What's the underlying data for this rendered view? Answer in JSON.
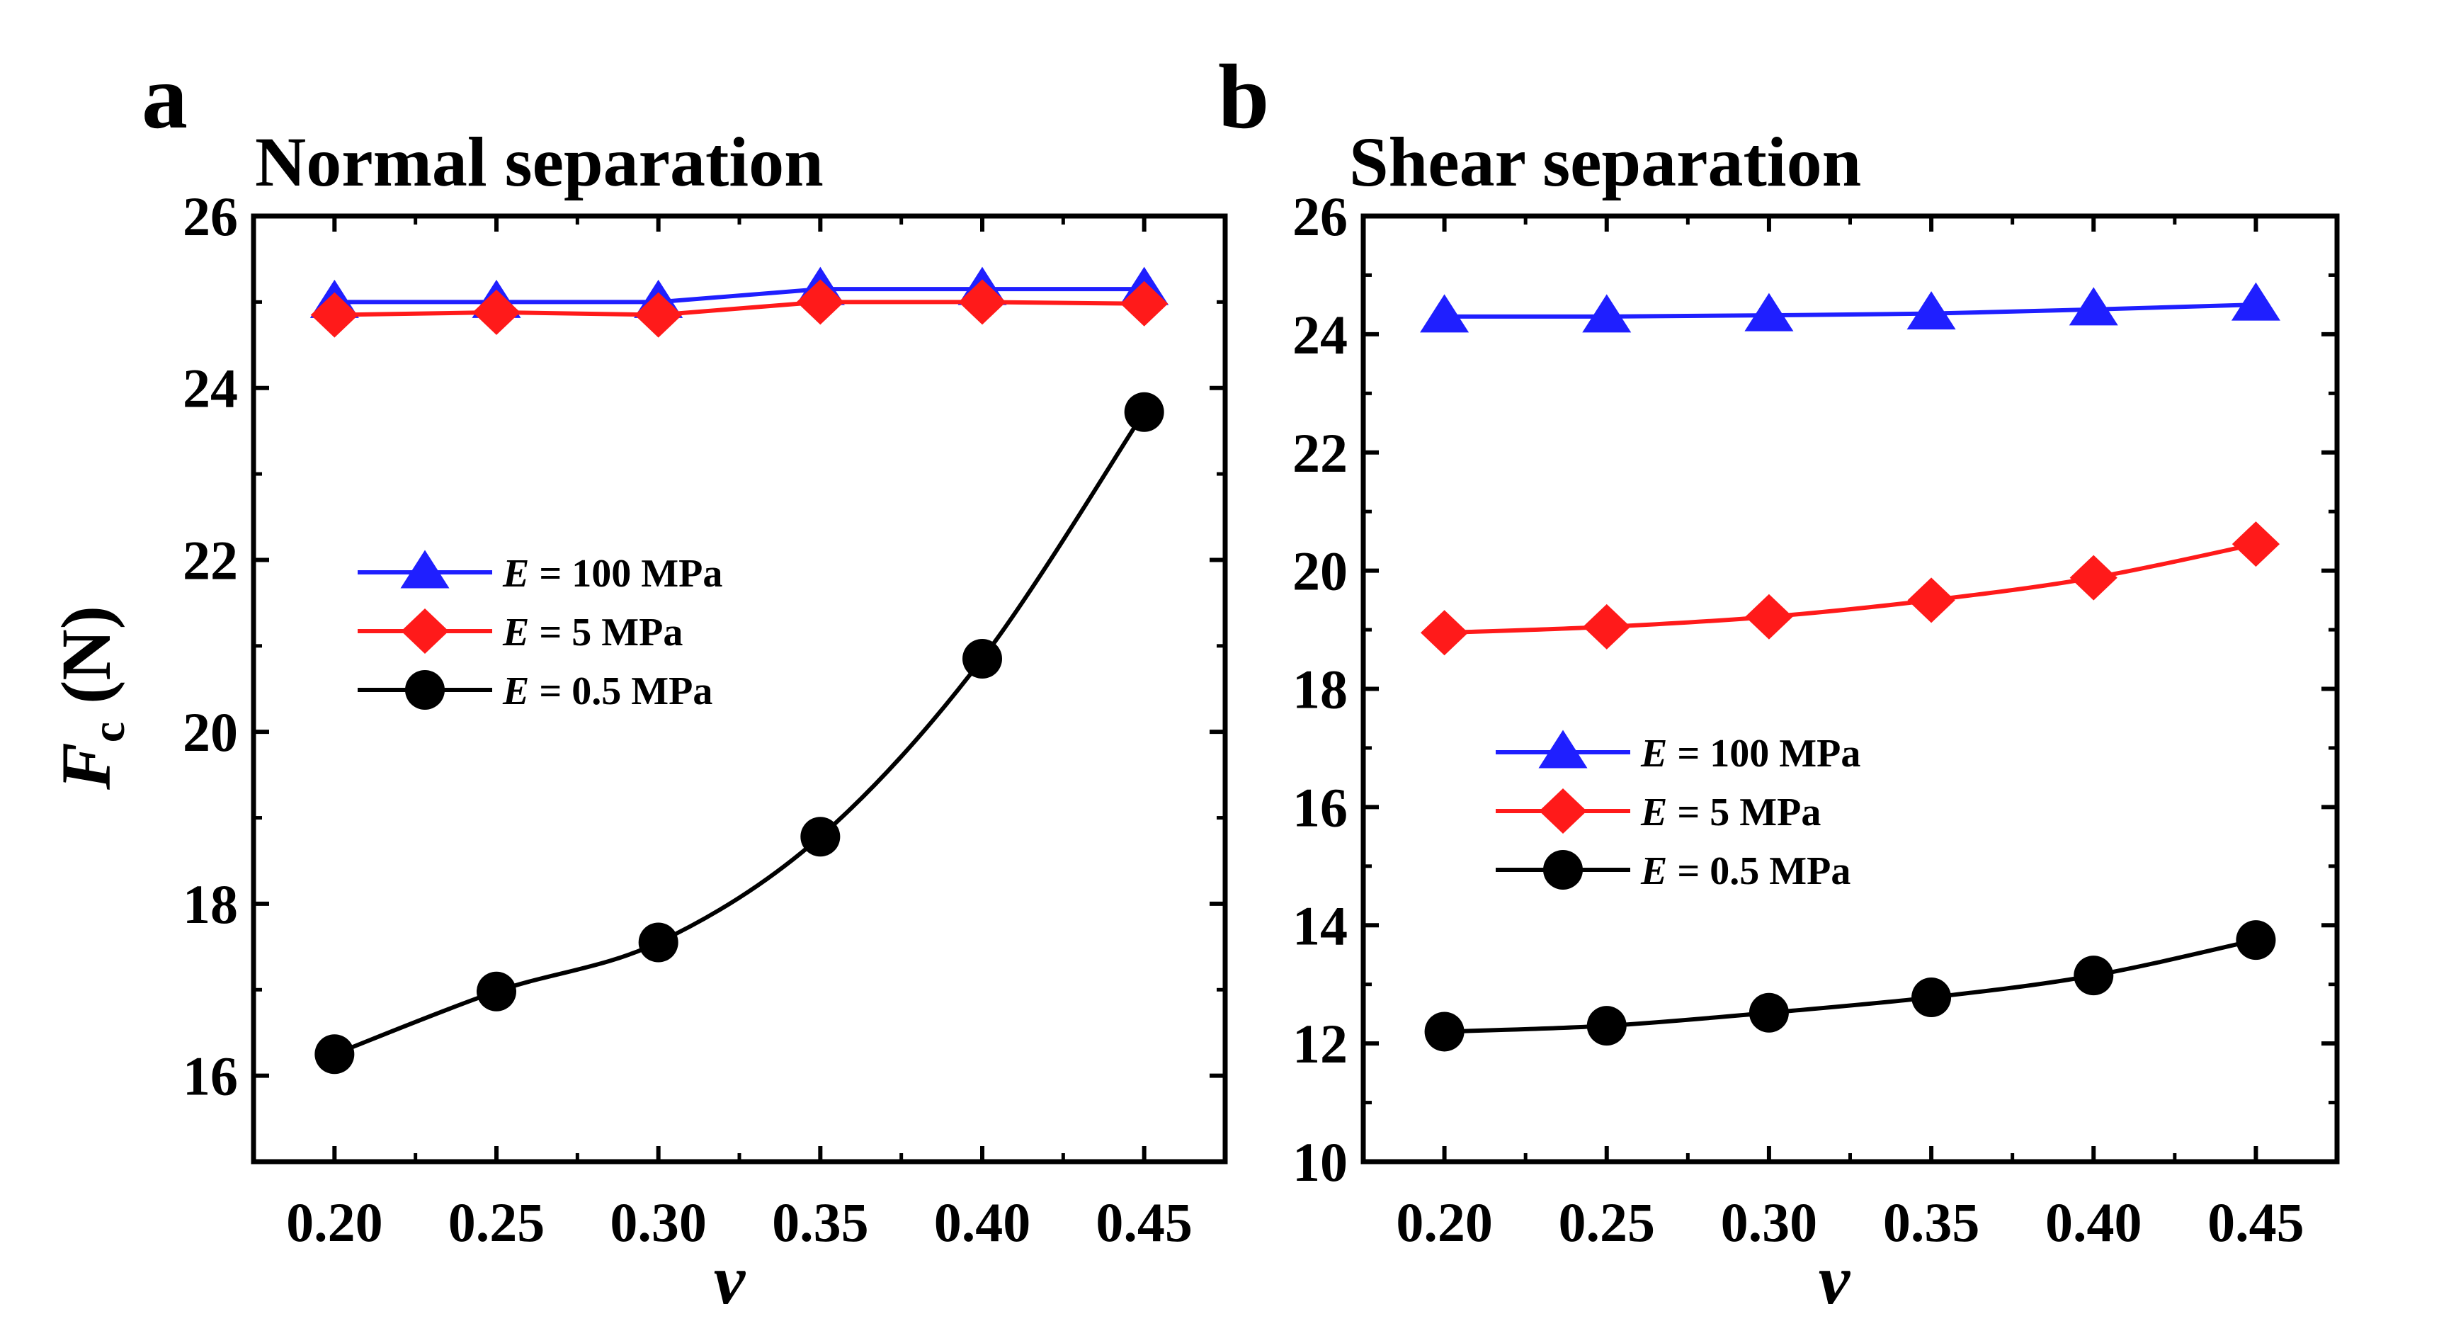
{
  "chart_data": [
    {
      "type": "line",
      "panel": "a",
      "title": "Normal separation",
      "xlabel": "v",
      "ylabel_main": "F",
      "ylabel_sub": "c",
      "ylabel_unit": " (N)",
      "x": [
        0.2,
        0.25,
        0.3,
        0.35,
        0.4,
        0.45
      ],
      "x_tick_labels": [
        "0.20",
        "0.25",
        "0.30",
        "0.35",
        "0.40",
        "0.45"
      ],
      "xlim": [
        0.175,
        0.475
      ],
      "ylim": [
        15,
        26
      ],
      "y_ticks": [
        16,
        18,
        20,
        22,
        24,
        26
      ],
      "y_tick_labels": [
        "16",
        "18",
        "20",
        "22",
        "24",
        "26"
      ],
      "legend_position": "center-left",
      "series": [
        {
          "name_italic": "E",
          "name_rest": " = 100 MPa",
          "marker": "triangle",
          "color": "#1f1fff",
          "values": [
            25.0,
            25.0,
            25.0,
            25.15,
            25.15,
            25.15
          ],
          "smooth": false
        },
        {
          "name_italic": "E",
          "name_rest": " = 5 MPa",
          "marker": "diamond",
          "color": "#ff1a1a",
          "values": [
            24.85,
            24.88,
            24.85,
            25.0,
            25.0,
            24.98
          ],
          "smooth": false
        },
        {
          "name_italic": "E",
          "name_rest": " = 0.5 MPa",
          "marker": "circle",
          "color": "#000000",
          "values": [
            16.25,
            16.98,
            17.55,
            18.78,
            20.85,
            23.72
          ],
          "smooth": true
        }
      ]
    },
    {
      "type": "line",
      "panel": "b",
      "title": "Shear separation",
      "xlabel": "v",
      "x": [
        0.2,
        0.25,
        0.3,
        0.35,
        0.4,
        0.45
      ],
      "x_tick_labels": [
        "0.20",
        "0.25",
        "0.30",
        "0.35",
        "0.40",
        "0.45"
      ],
      "xlim": [
        0.175,
        0.475
      ],
      "ylim": [
        10,
        26
      ],
      "y_ticks": [
        10,
        12,
        14,
        16,
        18,
        20,
        22,
        24,
        26
      ],
      "y_tick_labels": [
        "10",
        "12",
        "14",
        "16",
        "18",
        "20",
        "22",
        "24",
        "26"
      ],
      "legend_position": "center-left",
      "series": [
        {
          "name_italic": "E",
          "name_rest": " = 100 MPa",
          "marker": "triangle",
          "color": "#1f1fff",
          "values": [
            24.3,
            24.3,
            24.32,
            24.35,
            24.42,
            24.5
          ],
          "smooth": false
        },
        {
          "name_italic": "E",
          "name_rest": " = 5 MPa",
          "marker": "diamond",
          "color": "#ff1a1a",
          "values": [
            18.95,
            19.05,
            19.22,
            19.5,
            19.88,
            20.45
          ],
          "smooth": true
        },
        {
          "name_italic": "E",
          "name_rest": " = 0.5 MPa",
          "marker": "circle",
          "color": "#000000",
          "values": [
            12.2,
            12.3,
            12.52,
            12.78,
            13.15,
            13.75
          ],
          "smooth": true
        }
      ]
    }
  ]
}
